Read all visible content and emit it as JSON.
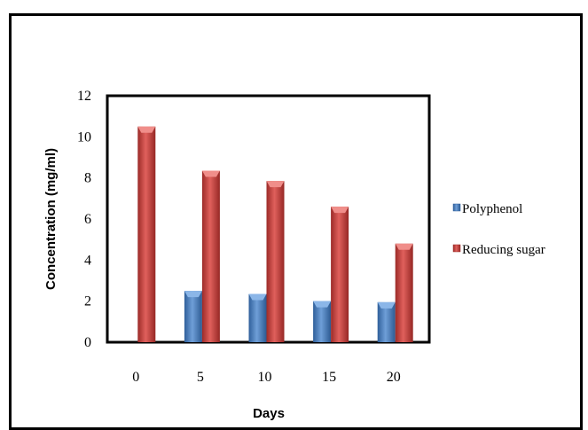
{
  "chart_data": {
    "type": "bar",
    "title": "",
    "xlabel": "Days",
    "ylabel": "Concentration (mg/ml)",
    "categories": [
      "0",
      "5",
      "10",
      "15",
      "20"
    ],
    "ylim": [
      0,
      12
    ],
    "yticks": [
      "0",
      "2",
      "4",
      "6",
      "8",
      "10",
      "12"
    ],
    "grid": false,
    "legend_position": "right",
    "series": [
      {
        "name": "Polyphenol",
        "color": "#4f81bd",
        "values": [
          null,
          2.5,
          2.35,
          2.0,
          1.95
        ]
      },
      {
        "name": "Reducing sugar",
        "color": "#c0504d",
        "values": [
          10.5,
          8.35,
          7.85,
          6.6,
          4.8
        ]
      }
    ]
  }
}
